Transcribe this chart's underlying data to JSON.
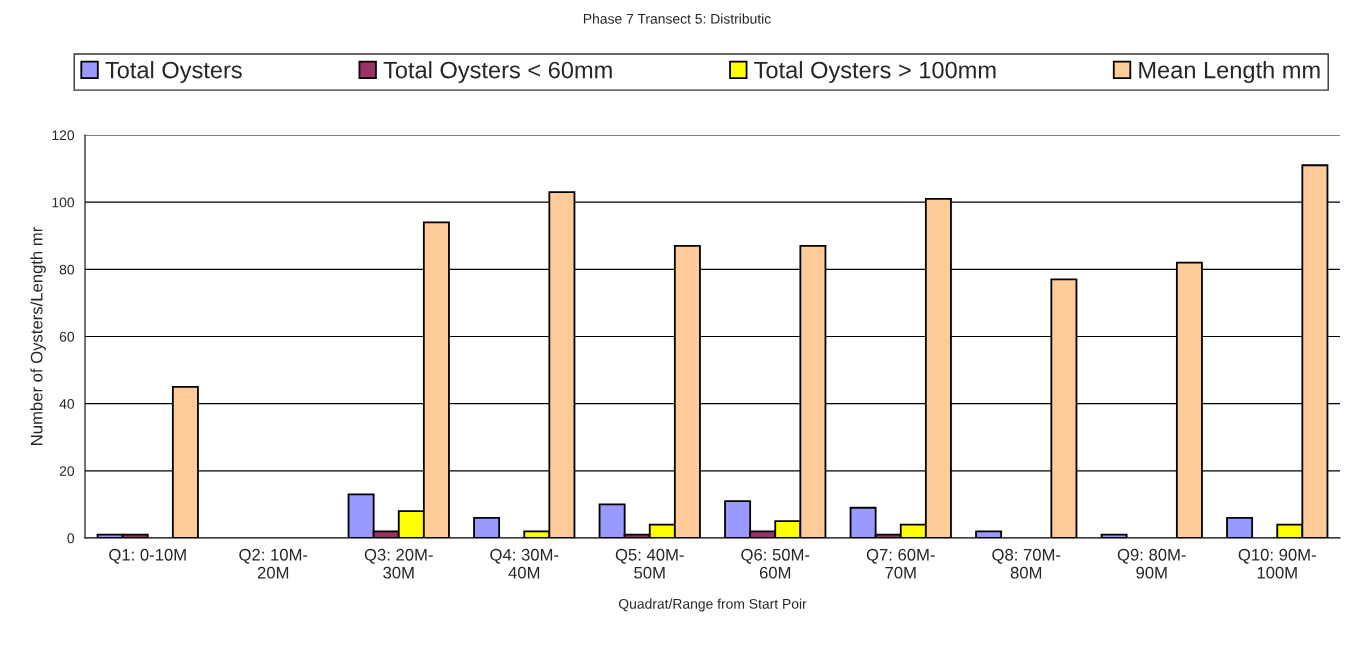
{
  "chart_data": {
    "type": "bar",
    "title": "Phase 7 Transect 5: Distributic",
    "xlabel": "Quadrat/Range from Start Poir",
    "ylabel": "Number of Oysters/Length mr",
    "categories": [
      "Q1: 0-10M",
      "Q2: 10M-\n20M",
      "Q3: 20M-\n30M",
      "Q4: 30M-\n40M",
      "Q5: 40M-\n50M",
      "Q6: 50M-\n60M",
      "Q7: 60M-\n70M",
      "Q8: 70M-\n80M",
      "Q9: 80M-\n90M",
      "Q10: 90M-\n100M"
    ],
    "series": [
      {
        "name": "Total Oysters",
        "color": "#9999ff",
        "values": [
          1,
          null,
          13,
          6,
          10,
          11,
          9,
          2,
          1,
          6
        ]
      },
      {
        "name": "Total Oysters < 60mm",
        "color": "#993366",
        "values": [
          1,
          null,
          2,
          null,
          1,
          2,
          1,
          null,
          null,
          null
        ]
      },
      {
        "name": "Total Oysters > 100mm",
        "color": "#ffff00",
        "values": [
          null,
          null,
          8,
          2,
          4,
          5,
          4,
          null,
          null,
          4
        ]
      },
      {
        "name": "Mean Length mm",
        "color": "#ffcc99",
        "values": [
          45,
          null,
          94,
          103,
          87,
          87,
          101,
          77,
          82,
          111
        ]
      }
    ],
    "ylim": [
      0,
      120
    ],
    "yticks": [
      0,
      20,
      40,
      60,
      80,
      100,
      120
    ],
    "grid": "y",
    "legend": "top"
  }
}
